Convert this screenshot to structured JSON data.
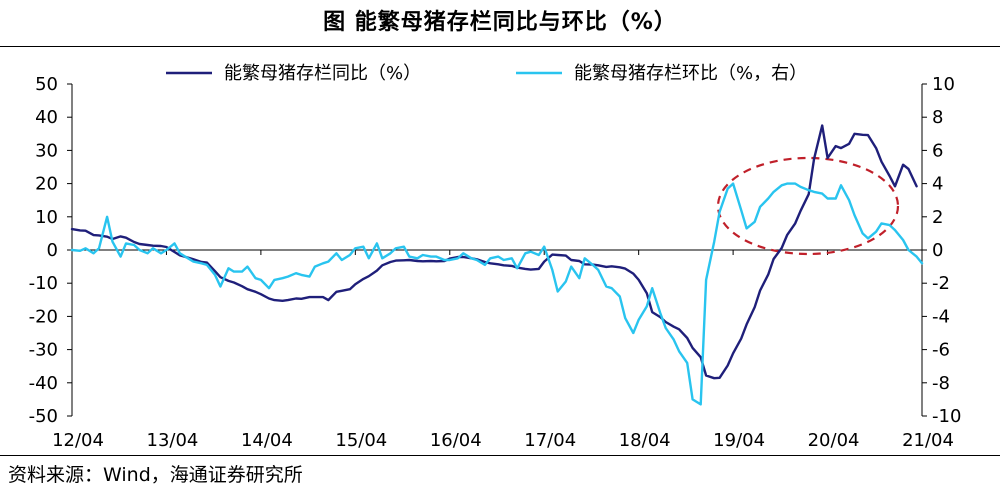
{
  "title": "图  能繁母猪存栏同比与环比（%）",
  "source": "资料来源：Wind，海通证券研究所",
  "colors": {
    "yoy": "#1f1f7a",
    "mom": "#29c4ef",
    "annotation": "#c0202a",
    "axis": "#000000"
  },
  "chart_data": {
    "type": "line",
    "title": "图  能繁母猪存栏同比与环比（%）",
    "x_tick_labels": [
      "12/04",
      "13/04",
      "14/04",
      "15/04",
      "16/04",
      "17/04",
      "18/04",
      "19/04",
      "20/04",
      "21/04"
    ],
    "y_left": {
      "lim": [
        -50,
        50
      ],
      "ticks": [
        "50",
        "40",
        "30",
        "20",
        "10",
        "0",
        "-10",
        "-20",
        "-30",
        "-40",
        "-50"
      ]
    },
    "y_right": {
      "lim": [
        -10,
        10
      ],
      "ticks": [
        "10",
        "8",
        "6",
        "4",
        "2",
        "0",
        "-2",
        "-4",
        "-6",
        "-8",
        "-10"
      ]
    },
    "grid": false,
    "legend_position": "top",
    "series": [
      {
        "name": "能繁母猪存栏同比（%）",
        "axis": "left",
        "color": "#1f1f7a",
        "points": [
          [
            0.0,
            6.3
          ],
          [
            0.3,
            5.9
          ],
          [
            0.5,
            5.8
          ],
          [
            0.8,
            4.5
          ],
          [
            1.0,
            4.4
          ],
          [
            1.3,
            4.0
          ],
          [
            1.5,
            3.3
          ],
          [
            1.8,
            4.1
          ],
          [
            2.0,
            3.7
          ],
          [
            2.3,
            2.4
          ],
          [
            2.5,
            1.8
          ],
          [
            2.8,
            1.5
          ],
          [
            3.0,
            1.3
          ],
          [
            3.3,
            1.2
          ],
          [
            3.5,
            0.9
          ],
          [
            3.8,
            -0.6
          ],
          [
            4.0,
            -1.6
          ],
          [
            4.3,
            -2.3
          ],
          [
            4.5,
            -2.8
          ],
          [
            4.8,
            -3.6
          ],
          [
            5.0,
            -3.8
          ],
          [
            5.3,
            -6.4
          ],
          [
            5.5,
            -8.2
          ],
          [
            5.8,
            -9.3
          ],
          [
            6.0,
            -9.8
          ],
          [
            6.3,
            -10.9
          ],
          [
            6.5,
            -11.8
          ],
          [
            6.8,
            -12.6
          ],
          [
            7.0,
            -13.3
          ],
          [
            7.3,
            -14.6
          ],
          [
            7.5,
            -15.1
          ],
          [
            7.8,
            -15.3
          ],
          [
            8.0,
            -15.1
          ],
          [
            8.3,
            -14.6
          ],
          [
            8.5,
            -14.7
          ],
          [
            8.8,
            -14.2
          ],
          [
            9.0,
            -14.2
          ],
          [
            9.3,
            -14.2
          ],
          [
            9.5,
            -15.1
          ],
          [
            9.8,
            -12.6
          ],
          [
            10.0,
            -12.3
          ],
          [
            10.3,
            -11.8
          ],
          [
            10.5,
            -10.3
          ],
          [
            10.8,
            -8.7
          ],
          [
            11.0,
            -7.9
          ],
          [
            11.3,
            -6.2
          ],
          [
            11.5,
            -4.6
          ],
          [
            11.8,
            -3.6
          ],
          [
            12.0,
            -3.2
          ],
          [
            12.3,
            -3.1
          ],
          [
            12.5,
            -3.0
          ],
          [
            12.8,
            -3.3
          ],
          [
            13.0,
            -3.4
          ],
          [
            13.3,
            -3.3
          ],
          [
            13.5,
            -3.4
          ],
          [
            13.8,
            -3.3
          ],
          [
            14.0,
            -2.6
          ],
          [
            14.3,
            -2.1
          ],
          [
            14.5,
            -2.1
          ],
          [
            14.8,
            -2.5
          ],
          [
            15.0,
            -2.8
          ],
          [
            15.3,
            -3.6
          ],
          [
            15.5,
            -4.0
          ],
          [
            15.8,
            -4.3
          ],
          [
            16.0,
            -4.6
          ],
          [
            16.3,
            -4.8
          ],
          [
            16.5,
            -5.3
          ],
          [
            16.8,
            -5.7
          ],
          [
            17.0,
            -5.9
          ],
          [
            17.3,
            -5.7
          ],
          [
            17.5,
            -3.5
          ],
          [
            17.8,
            -1.4
          ],
          [
            18.0,
            -1.5
          ],
          [
            18.3,
            -1.7
          ],
          [
            18.5,
            -3.0
          ],
          [
            18.8,
            -3.3
          ],
          [
            19.0,
            -4.3
          ],
          [
            19.3,
            -4.4
          ],
          [
            19.5,
            -4.6
          ],
          [
            19.8,
            -5.1
          ],
          [
            20.0,
            -4.9
          ],
          [
            20.3,
            -5.2
          ],
          [
            20.5,
            -5.6
          ],
          [
            20.8,
            -7.1
          ],
          [
            21.0,
            -9.0
          ],
          [
            21.3,
            -13.0
          ],
          [
            21.5,
            -18.7
          ],
          [
            21.8,
            -20.2
          ],
          [
            22.0,
            -21.7
          ],
          [
            22.3,
            -23.1
          ],
          [
            22.5,
            -23.9
          ],
          [
            22.8,
            -26.5
          ],
          [
            23.0,
            -29.5
          ],
          [
            23.3,
            -32.3
          ],
          [
            23.5,
            -37.8
          ],
          [
            23.8,
            -38.6
          ],
          [
            24.0,
            -38.5
          ],
          [
            24.3,
            -34.8
          ],
          [
            24.5,
            -31.1
          ],
          [
            24.8,
            -26.7
          ],
          [
            25.0,
            -22.4
          ],
          [
            25.3,
            -17.2
          ],
          [
            25.5,
            -12.2
          ],
          [
            25.8,
            -7.4
          ],
          [
            26.0,
            -2.7
          ],
          [
            26.3,
            0.6
          ],
          [
            26.5,
            4.5
          ],
          [
            26.8,
            8.0
          ],
          [
            27.0,
            11.8
          ],
          [
            27.3,
            16.8
          ],
          [
            27.5,
            27.5
          ],
          [
            27.8,
            37.5
          ],
          [
            28.0,
            27.7
          ],
          [
            28.3,
            31.3
          ],
          [
            28.5,
            30.7
          ],
          [
            28.8,
            32.0
          ],
          [
            29.0,
            35.0
          ],
          [
            29.3,
            34.7
          ],
          [
            29.5,
            34.6
          ],
          [
            29.8,
            30.7
          ],
          [
            30.0,
            26.6
          ],
          [
            30.3,
            22.3
          ],
          [
            30.5,
            19.2
          ],
          [
            30.8,
            25.7
          ],
          [
            31.0,
            24.4
          ],
          [
            31.3,
            19.2
          ]
        ]
      },
      {
        "name": "能繁母猪存栏环比（%，右）",
        "axis": "right",
        "color": "#29c4ef",
        "points": [
          [
            0.0,
            0.0
          ],
          [
            0.3,
            -0.05
          ],
          [
            0.5,
            0.1
          ],
          [
            0.8,
            -0.2
          ],
          [
            1.0,
            0.1
          ],
          [
            1.3,
            2.0
          ],
          [
            1.5,
            0.5
          ],
          [
            1.8,
            -0.4
          ],
          [
            2.0,
            0.4
          ],
          [
            2.3,
            0.3
          ],
          [
            2.5,
            0.0
          ],
          [
            2.8,
            -0.2
          ],
          [
            3.0,
            0.1
          ],
          [
            3.3,
            -0.2
          ],
          [
            3.5,
            0.0
          ],
          [
            3.8,
            0.4
          ],
          [
            4.0,
            -0.2
          ],
          [
            4.3,
            -0.5
          ],
          [
            4.5,
            -0.7
          ],
          [
            4.8,
            -0.8
          ],
          [
            5.0,
            -0.9
          ],
          [
            5.3,
            -1.5
          ],
          [
            5.5,
            -2.2
          ],
          [
            5.8,
            -1.1
          ],
          [
            6.0,
            -1.3
          ],
          [
            6.3,
            -1.3
          ],
          [
            6.5,
            -1.0
          ],
          [
            6.8,
            -1.7
          ],
          [
            7.0,
            -1.8
          ],
          [
            7.3,
            -2.3
          ],
          [
            7.5,
            -1.8
          ],
          [
            7.8,
            -1.7
          ],
          [
            8.0,
            -1.6
          ],
          [
            8.3,
            -1.4
          ],
          [
            8.5,
            -1.5
          ],
          [
            8.8,
            -1.6
          ],
          [
            9.0,
            -1.0
          ],
          [
            9.3,
            -0.8
          ],
          [
            9.5,
            -0.7
          ],
          [
            9.8,
            -0.2
          ],
          [
            10.0,
            -0.6
          ],
          [
            10.3,
            -0.3
          ],
          [
            10.5,
            0.1
          ],
          [
            10.8,
            0.2
          ],
          [
            11.0,
            -0.5
          ],
          [
            11.3,
            0.4
          ],
          [
            11.5,
            -0.5
          ],
          [
            11.8,
            -0.2
          ],
          [
            12.0,
            0.1
          ],
          [
            12.3,
            0.2
          ],
          [
            12.5,
            -0.4
          ],
          [
            12.8,
            -0.5
          ],
          [
            13.0,
            -0.3
          ],
          [
            13.3,
            -0.4
          ],
          [
            13.5,
            -0.4
          ],
          [
            13.8,
            -0.6
          ],
          [
            14.0,
            -0.6
          ],
          [
            14.3,
            -0.5
          ],
          [
            14.5,
            -0.2
          ],
          [
            14.8,
            -0.5
          ],
          [
            15.0,
            -0.6
          ],
          [
            15.3,
            -0.9
          ],
          [
            15.5,
            -0.5
          ],
          [
            15.8,
            -0.4
          ],
          [
            16.0,
            -0.6
          ],
          [
            16.3,
            -0.5
          ],
          [
            16.5,
            -1.1
          ],
          [
            16.8,
            -0.2
          ],
          [
            17.0,
            -0.1
          ],
          [
            17.3,
            -0.3
          ],
          [
            17.5,
            0.2
          ],
          [
            17.8,
            -1.2
          ],
          [
            18.0,
            -2.5
          ],
          [
            18.3,
            -1.9
          ],
          [
            18.5,
            -1.0
          ],
          [
            18.8,
            -1.7
          ],
          [
            19.0,
            -0.5
          ],
          [
            19.3,
            -0.9
          ],
          [
            19.5,
            -1.2
          ],
          [
            19.8,
            -2.2
          ],
          [
            20.0,
            -2.3
          ],
          [
            20.3,
            -2.8
          ],
          [
            20.5,
            -4.1
          ],
          [
            20.8,
            -5.0
          ],
          [
            21.0,
            -4.2
          ],
          [
            21.3,
            -3.4
          ],
          [
            21.5,
            -2.3
          ],
          [
            21.8,
            -3.8
          ],
          [
            22.0,
            -4.7
          ],
          [
            22.3,
            -5.4
          ],
          [
            22.5,
            -6.1
          ],
          [
            22.8,
            -6.8
          ],
          [
            23.0,
            -9.0
          ],
          [
            23.3,
            -9.3
          ],
          [
            23.5,
            -1.8
          ],
          [
            23.8,
            0.5
          ],
          [
            24.0,
            2.3
          ],
          [
            24.3,
            3.7
          ],
          [
            24.5,
            4.0
          ],
          [
            24.8,
            2.4
          ],
          [
            25.0,
            1.3
          ],
          [
            25.3,
            1.7
          ],
          [
            25.5,
            2.6
          ],
          [
            25.8,
            3.1
          ],
          [
            26.0,
            3.5
          ],
          [
            26.3,
            3.9
          ],
          [
            26.5,
            4.0
          ],
          [
            26.8,
            4.0
          ],
          [
            27.0,
            3.8
          ],
          [
            27.3,
            3.6
          ],
          [
            27.5,
            3.5
          ],
          [
            27.8,
            3.4
          ],
          [
            28.0,
            3.1
          ],
          [
            28.3,
            3.1
          ],
          [
            28.5,
            3.9
          ],
          [
            28.8,
            3.0
          ],
          [
            29.0,
            2.1
          ],
          [
            29.3,
            1.0
          ],
          [
            29.5,
            0.7
          ],
          [
            29.8,
            1.1
          ],
          [
            30.0,
            1.6
          ],
          [
            30.3,
            1.5
          ],
          [
            30.5,
            1.2
          ],
          [
            30.8,
            0.6
          ],
          [
            31.0,
            0.0
          ],
          [
            31.3,
            -0.4
          ],
          [
            31.5,
            -0.8
          ]
        ]
      }
    ]
  }
}
